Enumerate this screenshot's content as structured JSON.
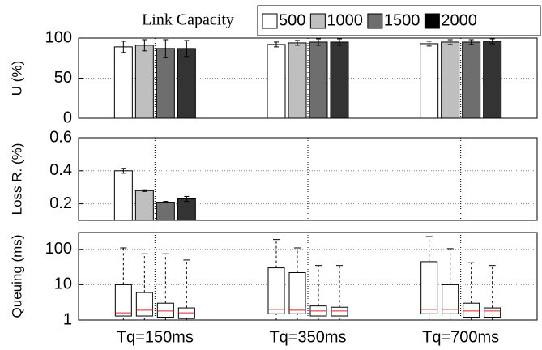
{
  "chart_data": [
    {
      "type": "bar",
      "ylabel": "U (%)",
      "legend_title": "Link Capacity",
      "legend": "top",
      "categories": [
        null,
        null,
        null
      ],
      "ylim": [
        0,
        100
      ],
      "yticks": [
        0,
        50,
        100
      ],
      "grid": true,
      "xgrid": true,
      "series": [
        {
          "name": "500",
          "color": "#ffffff",
          "values": [
            89,
            92,
            93
          ],
          "errors": [
            7,
            3,
            3
          ]
        },
        {
          "name": "1000",
          "color": "#bfbfbf",
          "values": [
            91,
            94,
            95
          ],
          "errors": [
            7,
            3,
            3
          ]
        },
        {
          "name": "1500",
          "color": "#6e6e6e",
          "values": [
            87,
            95,
            95
          ],
          "errors": [
            11,
            4,
            3
          ]
        },
        {
          "name": "2000",
          "color": "#333333",
          "values": [
            87,
            95,
            96
          ],
          "errors": [
            10,
            4,
            3
          ]
        }
      ]
    },
    {
      "type": "bar",
      "ylabel": "Loss R. (%)",
      "categories": [
        null,
        null,
        null
      ],
      "ylim": [
        0.1,
        0.6
      ],
      "yticks": [
        0.2,
        0.4,
        0.6
      ],
      "grid": true,
      "xgrid": true,
      "series": [
        {
          "color": "#ffffff",
          "values": [
            0.4,
            null,
            null
          ],
          "errors": [
            0.015,
            null,
            null
          ]
        },
        {
          "color": "#bfbfbf",
          "values": [
            0.28,
            null,
            null
          ],
          "errors": [
            0.005,
            null,
            null
          ]
        },
        {
          "color": "#6e6e6e",
          "values": [
            0.21,
            null,
            null
          ],
          "errors": [
            0.005,
            null,
            null
          ]
        },
        {
          "color": "#333333",
          "values": [
            0.23,
            null,
            null
          ],
          "errors": [
            0.015,
            null,
            null
          ]
        }
      ]
    },
    {
      "type": "box",
      "ylabel": "Queuing (ms)",
      "log": true,
      "categories": [
        "Tq=150ms",
        "Tq=350ms",
        "Tq=700ms"
      ],
      "ylim": [
        1,
        300
      ],
      "yticks": [
        1,
        10,
        100
      ],
      "grid": true,
      "xgrid": true,
      "median_color": "#e02020",
      "series": [
        {
          "values": [
            {
              "low": 1,
              "q1": 1.3,
              "median": 1.6,
              "q3": 10,
              "high": 110
            },
            {
              "low": 1,
              "q1": 1.5,
              "median": 2,
              "q3": 30,
              "high": 190
            },
            {
              "low": 1,
              "q1": 1.5,
              "median": 2,
              "q3": 45,
              "high": 230
            }
          ]
        },
        {
          "values": [
            {
              "low": 1,
              "q1": 1.3,
              "median": 1.9,
              "q3": 6,
              "high": 75
            },
            {
              "low": 1,
              "q1": 1.5,
              "median": 1.9,
              "q3": 22,
              "high": 110
            },
            {
              "low": 1,
              "q1": 1.5,
              "median": 2,
              "q3": 10,
              "high": 105
            }
          ]
        },
        {
          "values": [
            {
              "low": 1,
              "q1": 1.2,
              "median": 1.8,
              "q3": 3,
              "high": 75
            },
            {
              "low": 1,
              "q1": 1.3,
              "median": 1.8,
              "q3": 2.5,
              "high": 35
            },
            {
              "low": 1,
              "q1": 1.2,
              "median": 1.8,
              "q3": 3,
              "high": 42
            }
          ]
        },
        {
          "values": [
            {
              "low": 1,
              "q1": 1.1,
              "median": 1.6,
              "q3": 2.2,
              "high": 50
            },
            {
              "low": 1,
              "q1": 1.3,
              "median": 1.8,
              "q3": 2.3,
              "high": 35
            },
            {
              "low": 1,
              "q1": 1.2,
              "median": 1.8,
              "q3": 2.2,
              "high": 35
            }
          ]
        }
      ]
    }
  ]
}
